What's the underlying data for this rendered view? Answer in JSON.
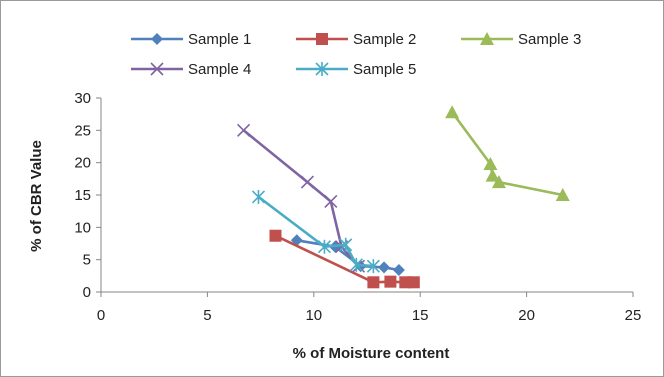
{
  "chart_data": {
    "type": "scatter",
    "title": "",
    "xlabel": "% of Moisture content",
    "ylabel": "% of CBR Value",
    "xlim": [
      0,
      25
    ],
    "ylim": [
      0,
      30
    ],
    "x_ticks": [
      0,
      5,
      10,
      15,
      20,
      25
    ],
    "y_ticks": [
      0,
      5,
      10,
      15,
      20,
      25,
      30
    ],
    "grid": false,
    "legend": "top",
    "series": [
      {
        "name": "Sample 1",
        "color": "#4f81bd",
        "marker": "diamond",
        "points": [
          [
            9.2,
            8.0
          ],
          [
            11.0,
            7.0
          ],
          [
            12.2,
            4.0
          ],
          [
            13.3,
            3.8
          ],
          [
            14.0,
            3.4
          ]
        ]
      },
      {
        "name": "Sample 2",
        "color": "#c0504d",
        "marker": "square",
        "points": [
          [
            8.2,
            8.7
          ],
          [
            12.8,
            1.5
          ],
          [
            13.6,
            1.6
          ],
          [
            14.3,
            1.5
          ],
          [
            14.7,
            1.5
          ]
        ]
      },
      {
        "name": "Sample 3",
        "color": "#9bbb59",
        "marker": "triangle",
        "points": [
          [
            16.5,
            27.8
          ],
          [
            18.3,
            19.8
          ],
          [
            18.4,
            18.0
          ],
          [
            18.7,
            17.0
          ],
          [
            21.7,
            15.0
          ]
        ]
      },
      {
        "name": "Sample 4",
        "color": "#8064a2",
        "marker": "x",
        "points": [
          [
            6.7,
            25.0
          ],
          [
            9.7,
            17.0
          ],
          [
            10.8,
            14.0
          ],
          [
            11.3,
            7.0
          ],
          [
            12.1,
            4.0
          ]
        ]
      },
      {
        "name": "Sample 5",
        "color": "#4bacc6",
        "marker": "star",
        "points": [
          [
            7.4,
            14.7
          ],
          [
            10.5,
            7.0
          ],
          [
            11.5,
            7.3
          ],
          [
            12.0,
            4.2
          ],
          [
            12.8,
            4.0
          ]
        ]
      }
    ]
  }
}
